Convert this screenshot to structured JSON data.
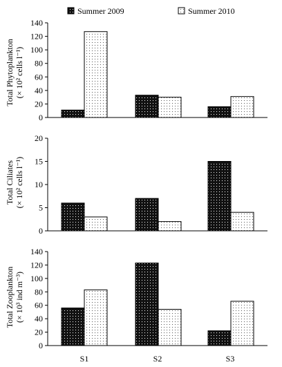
{
  "legend": [
    {
      "label": "Summer 2009",
      "pattern": "dark-dotted"
    },
    {
      "label": "Summer 2010",
      "pattern": "light-dotted"
    }
  ],
  "colors": {
    "dark_fill": "#111111",
    "light_fill": "#ffffff",
    "axis": "#000000"
  },
  "chart_data": [
    {
      "type": "bar",
      "categories": [
        "S1",
        "S2",
        "S3"
      ],
      "series": [
        {
          "name": "Summer 2009",
          "values": [
            11,
            33,
            16
          ]
        },
        {
          "name": "Summer 2010",
          "values": [
            127,
            30,
            31
          ]
        }
      ],
      "ylabel_line1": "Total Phytoplankton",
      "ylabel_line2": "(× 10² cells l⁻¹)",
      "ylim": [
        0,
        140
      ],
      "yticks": [
        0,
        20,
        40,
        60,
        80,
        100,
        120,
        140
      ],
      "grid": false
    },
    {
      "type": "bar",
      "categories": [
        "S1",
        "S2",
        "S3"
      ],
      "series": [
        {
          "name": "Summer 2009",
          "values": [
            6,
            7,
            15
          ]
        },
        {
          "name": "Summer 2010",
          "values": [
            3,
            2,
            4
          ]
        }
      ],
      "ylabel_line1": "Total Ciliates",
      "ylabel_line2": "(× 10² cells l⁻¹)",
      "ylim": [
        0,
        20
      ],
      "yticks": [
        0,
        5,
        10,
        15,
        20
      ],
      "grid": false
    },
    {
      "type": "bar",
      "categories": [
        "S1",
        "S2",
        "S3"
      ],
      "series": [
        {
          "name": "Summer 2009",
          "values": [
            56,
            123,
            22
          ]
        },
        {
          "name": "Summer 2010",
          "values": [
            83,
            54,
            66
          ]
        }
      ],
      "ylabel_line1": "Total Zooplankton",
      "ylabel_line2": "(× 10³ ind m⁻³)",
      "ylim": [
        0,
        140
      ],
      "yticks": [
        0,
        20,
        40,
        60,
        80,
        100,
        120,
        140
      ],
      "grid": false
    }
  ],
  "x_tick_labels": [
    "S1",
    "S2",
    "S3"
  ]
}
